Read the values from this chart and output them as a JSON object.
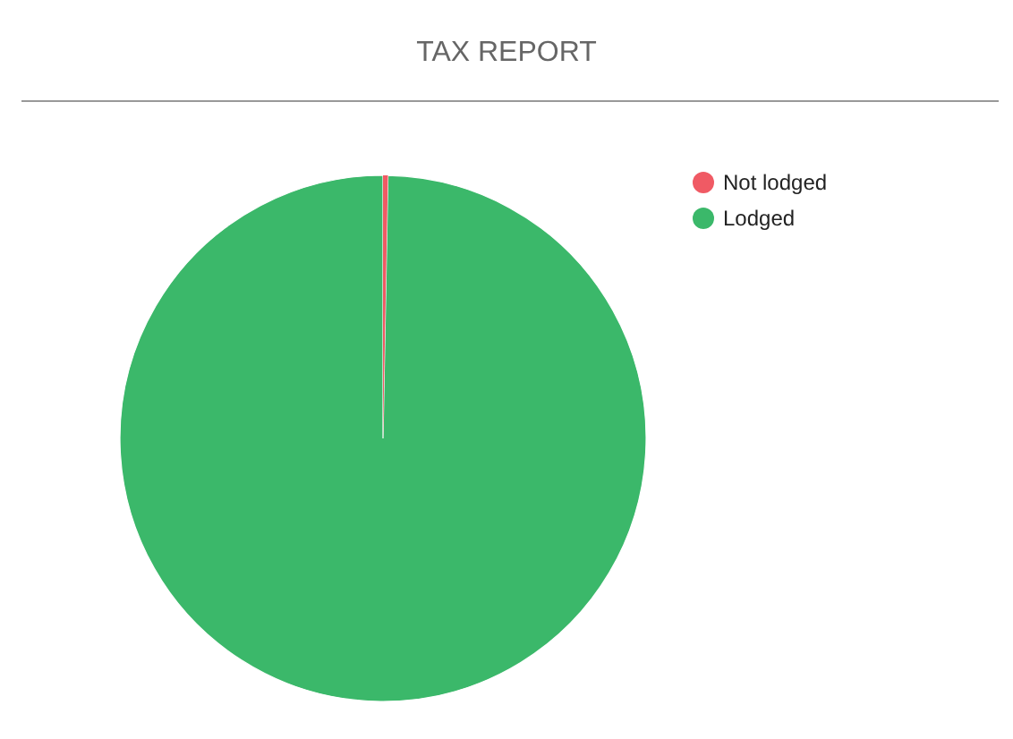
{
  "chart_data": {
    "type": "pie",
    "title": "TAX REPORT",
    "categories": [
      "Not lodged",
      "Lodged"
    ],
    "values": [
      0.3,
      99.7
    ],
    "colors": [
      "#f05a64",
      "#3bb86a"
    ],
    "legend": "top right"
  }
}
